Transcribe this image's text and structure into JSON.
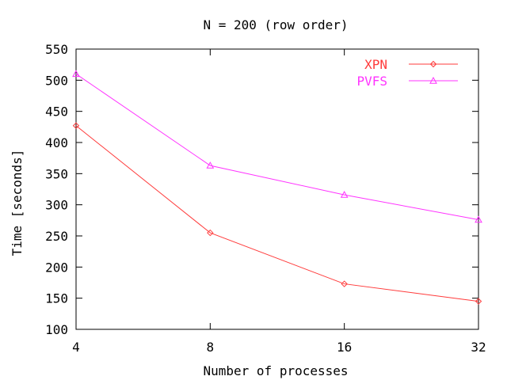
{
  "chart_data": {
    "type": "line",
    "title": "N = 200 (row order)",
    "xlabel": "Number of processes",
    "ylabel": "Time [seconds]",
    "x": [
      4,
      8,
      16,
      32
    ],
    "x_tick_labels": [
      "4",
      "8",
      "16",
      "32"
    ],
    "ylim": [
      100,
      550
    ],
    "y_ticks": [
      100,
      150,
      200,
      250,
      300,
      350,
      400,
      450,
      500,
      550
    ],
    "legend_position": "top-right",
    "series": [
      {
        "name": "XPN",
        "values": [
          427,
          255,
          173,
          145
        ],
        "color": "#ff3b3b",
        "marker": "diamond"
      },
      {
        "name": "PVFS",
        "values": [
          510,
          363,
          316,
          276
        ],
        "color": "#ff33ff",
        "marker": "triangle"
      }
    ]
  }
}
